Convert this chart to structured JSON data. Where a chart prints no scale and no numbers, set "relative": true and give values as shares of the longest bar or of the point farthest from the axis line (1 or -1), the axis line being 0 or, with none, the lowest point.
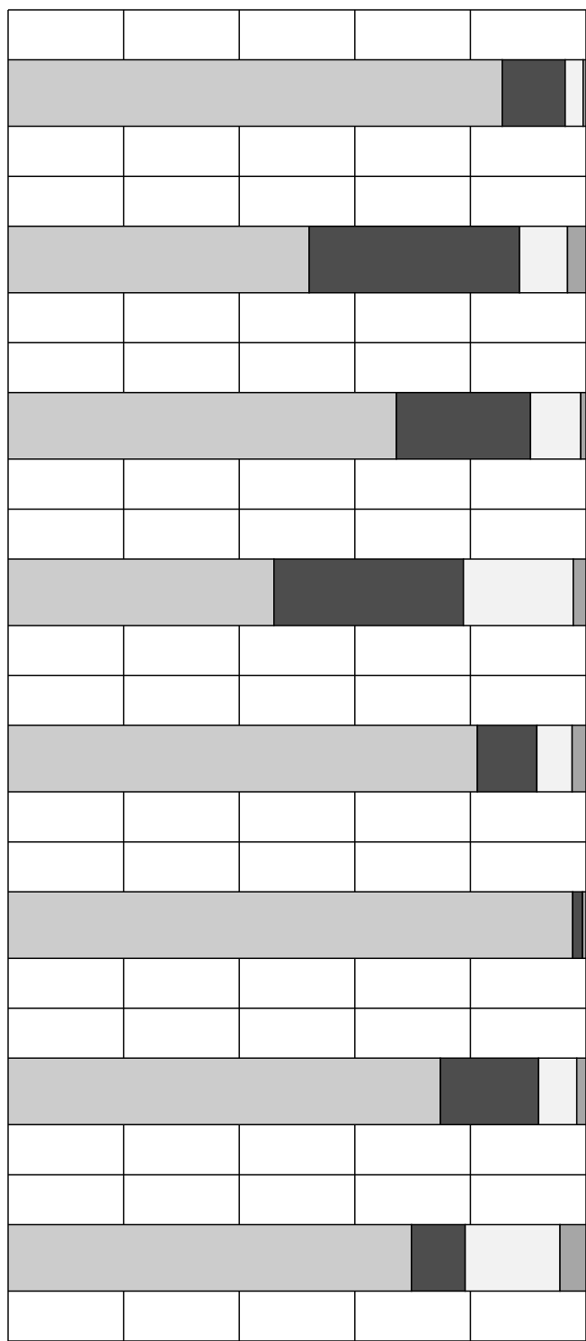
{
  "chart_data": {
    "type": "bar",
    "orientation": "horizontal",
    "stacked": true,
    "relative": true,
    "grid": true,
    "categories": [
      null,
      null,
      null,
      null,
      null,
      null,
      null,
      null
    ],
    "series": [
      {
        "color": "#cccccc",
        "values": [
          0.855,
          0.521,
          0.672,
          0.46,
          0.812,
          0.977,
          0.748,
          0.698
        ]
      },
      {
        "color": "#4d4d4d",
        "values": [
          0.109,
          0.364,
          0.232,
          0.328,
          0.103,
          0.017,
          0.17,
          0.093
        ]
      },
      {
        "color": "#f2f2f2",
        "values": [
          0.031,
          0.083,
          0.087,
          0.19,
          0.061,
          0,
          0.066,
          0.164
        ]
      },
      {
        "color": "#a6a6a6",
        "values": [
          0.005,
          0.032,
          0.009,
          0.022,
          0.024,
          0.006,
          0.016,
          0.045
        ]
      }
    ]
  }
}
